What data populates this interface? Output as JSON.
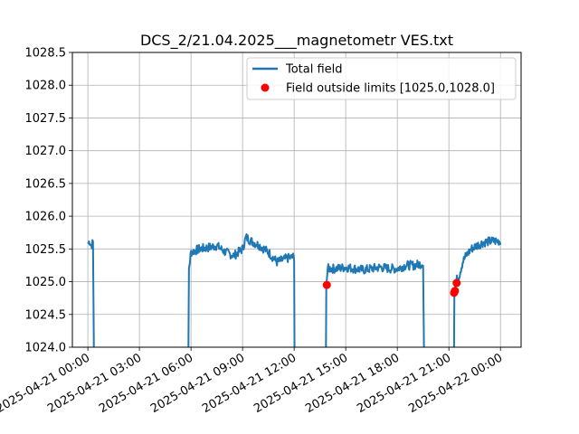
{
  "chart_data": {
    "type": "line",
    "title": "DCS_2/21.04.2025___magnetometr VES.txt",
    "xlabel": "",
    "ylabel": "",
    "x_range_hours": [
      -0.9,
      25.2
    ],
    "ylim": [
      1024.0,
      1028.5
    ],
    "grid": true,
    "legend_position": "top-right",
    "colors": {
      "line": "#1f77b4",
      "outlier": "#ff0000",
      "grid": "#b0b0b0"
    },
    "x_ticks": [
      {
        "hours": 0,
        "label": "2025-04-21 00:00"
      },
      {
        "hours": 3,
        "label": "2025-04-21 03:00"
      },
      {
        "hours": 6,
        "label": "2025-04-21 06:00"
      },
      {
        "hours": 9,
        "label": "2025-04-21 09:00"
      },
      {
        "hours": 12,
        "label": "2025-04-21 12:00"
      },
      {
        "hours": 15,
        "label": "2025-04-21 15:00"
      },
      {
        "hours": 18,
        "label": "2025-04-21 18:00"
      },
      {
        "hours": 21,
        "label": "2025-04-21 21:00"
      },
      {
        "hours": 24,
        "label": "2025-04-22 00:00"
      }
    ],
    "y_ticks": [
      "1024.0",
      "1024.5",
      "1025.0",
      "1025.5",
      "1026.0",
      "1026.5",
      "1027.0",
      "1027.5",
      "1028.0",
      "1028.5"
    ],
    "series": [
      {
        "name": "Total field",
        "segments": [
          [
            [
              0.0,
              1025.58
            ],
            [
              0.1,
              1025.62
            ],
            [
              0.2,
              1025.55
            ],
            [
              0.3,
              1025.6
            ],
            [
              0.35,
              1024.0
            ]
          ],
          [
            [
              5.85,
              1024.0
            ],
            [
              5.88,
              1025.2
            ],
            [
              6.0,
              1025.45
            ],
            [
              6.5,
              1025.5
            ],
            [
              7.0,
              1025.52
            ],
            [
              7.5,
              1025.55
            ],
            [
              8.0,
              1025.45
            ],
            [
              8.5,
              1025.4
            ],
            [
              9.0,
              1025.5
            ],
            [
              9.2,
              1025.68
            ],
            [
              9.5,
              1025.62
            ],
            [
              10.0,
              1025.55
            ],
            [
              10.5,
              1025.45
            ],
            [
              11.0,
              1025.3
            ],
            [
              11.5,
              1025.35
            ],
            [
              12.0,
              1025.38
            ],
            [
              12.02,
              1024.0
            ]
          ],
          [
            [
              13.85,
              1024.0
            ],
            [
              13.87,
              1024.95
            ],
            [
              13.95,
              1025.2
            ],
            [
              14.5,
              1025.2
            ],
            [
              15.0,
              1025.22
            ],
            [
              15.5,
              1025.2
            ],
            [
              16.0,
              1025.18
            ],
            [
              16.5,
              1025.2
            ],
            [
              17.0,
              1025.22
            ],
            [
              17.5,
              1025.2
            ],
            [
              18.0,
              1025.2
            ],
            [
              18.5,
              1025.25
            ],
            [
              19.0,
              1025.25
            ],
            [
              19.5,
              1025.28
            ],
            [
              19.55,
              1024.0
            ]
          ],
          [
            [
              21.3,
              1024.0
            ],
            [
              21.32,
              1024.85
            ],
            [
              21.4,
              1025.0
            ],
            [
              21.6,
              1025.1
            ],
            [
              21.8,
              1025.3
            ],
            [
              22.0,
              1025.4
            ],
            [
              22.3,
              1025.5
            ],
            [
              22.6,
              1025.55
            ],
            [
              23.0,
              1025.6
            ],
            [
              23.5,
              1025.62
            ],
            [
              24.0,
              1025.62
            ]
          ]
        ]
      },
      {
        "name": "Field outside limits [1025.0,1028.0]",
        "points": [
          [
            13.9,
            1024.95
          ],
          [
            21.3,
            1024.83
          ],
          [
            21.35,
            1024.86
          ],
          [
            21.45,
            1024.98
          ]
        ]
      }
    ]
  }
}
